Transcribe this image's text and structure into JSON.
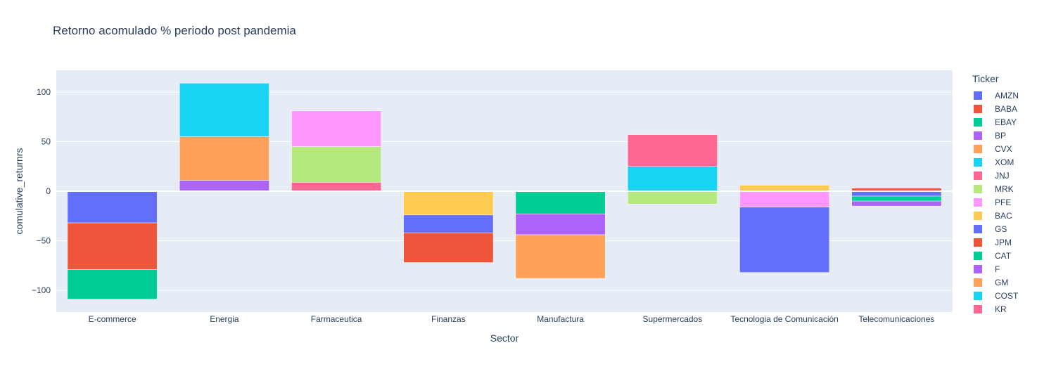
{
  "chart_data": {
    "type": "bar",
    "barmode": "relative",
    "title": "Retorno acomulado % periodo post pandemia",
    "xlabel": "Sector",
    "ylabel": "comulative_returnrs",
    "categories": [
      "E-commerce",
      "Energia",
      "Farmaceutica",
      "Finanzas",
      "Manufactura",
      "Supermercados",
      "Tecnologia de Comunicación",
      "Telecomunicaciones"
    ],
    "ylim": [
      -122,
      122
    ],
    "yticks": [
      -100,
      -50,
      0,
      50,
      100
    ],
    "ytick_labels": [
      "−100",
      "−50",
      "0",
      "50",
      "100"
    ],
    "grid": true,
    "legend_title": "Ticker",
    "legend_position": "right",
    "series": [
      {
        "name": "AMZN",
        "color": "#636efa",
        "values": [
          -32,
          null,
          null,
          null,
          null,
          null,
          null,
          null
        ]
      },
      {
        "name": "BABA",
        "color": "#EF553B",
        "values": [
          -47,
          null,
          null,
          null,
          null,
          null,
          null,
          null
        ]
      },
      {
        "name": "EBAY",
        "color": "#00cc96",
        "values": [
          -30,
          null,
          null,
          null,
          null,
          null,
          null,
          null
        ]
      },
      {
        "name": "BP",
        "color": "#ab63fa",
        "values": [
          null,
          11,
          null,
          null,
          null,
          null,
          null,
          null
        ]
      },
      {
        "name": "CVX",
        "color": "#FFA15A",
        "values": [
          null,
          44,
          null,
          null,
          null,
          null,
          null,
          null
        ]
      },
      {
        "name": "XOM",
        "color": "#19d3f3",
        "values": [
          null,
          54,
          null,
          null,
          null,
          null,
          null,
          null
        ]
      },
      {
        "name": "JNJ",
        "color": "#FF6692",
        "values": [
          null,
          null,
          9,
          null,
          null,
          null,
          null,
          null
        ]
      },
      {
        "name": "MRK",
        "color": "#B6E880",
        "values": [
          null,
          null,
          36,
          null,
          null,
          -13,
          null,
          null
        ]
      },
      {
        "name": "PFE",
        "color": "#FF97FF",
        "values": [
          null,
          null,
          36,
          null,
          null,
          null,
          -16,
          null
        ]
      },
      {
        "name": "BAC",
        "color": "#FECB52",
        "values": [
          null,
          null,
          null,
          -24,
          null,
          null,
          6,
          null
        ]
      },
      {
        "name": "GS",
        "color": "#636efa",
        "values": [
          null,
          null,
          null,
          -18,
          null,
          null,
          -66,
          -5
        ]
      },
      {
        "name": "JPM",
        "color": "#EF553B",
        "values": [
          null,
          null,
          null,
          -30,
          null,
          null,
          null,
          3
        ]
      },
      {
        "name": "CAT",
        "color": "#00cc96",
        "values": [
          null,
          null,
          null,
          null,
          -23,
          null,
          null,
          -5
        ]
      },
      {
        "name": "F",
        "color": "#ab63fa",
        "values": [
          null,
          null,
          null,
          null,
          -21,
          null,
          null,
          -5
        ]
      },
      {
        "name": "GM",
        "color": "#FFA15A",
        "values": [
          null,
          null,
          null,
          null,
          -44,
          null,
          null,
          null
        ]
      },
      {
        "name": "COST",
        "color": "#19d3f3",
        "values": [
          null,
          null,
          null,
          null,
          null,
          25,
          null,
          null
        ]
      },
      {
        "name": "KR",
        "color": "#FF6692",
        "values": [
          null,
          null,
          null,
          null,
          null,
          32,
          null,
          null
        ]
      }
    ]
  }
}
